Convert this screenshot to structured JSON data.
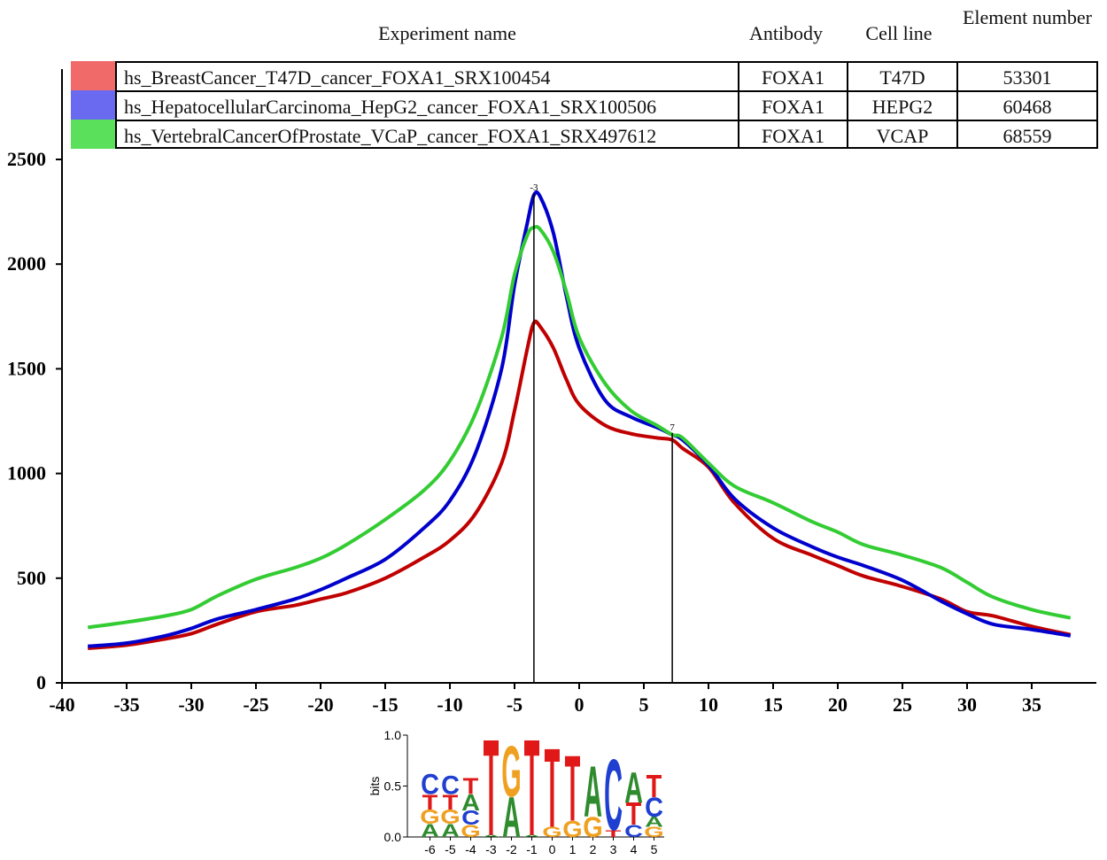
{
  "legend": {
    "headers": {
      "experiment": "Experiment name",
      "antibody": "Antibody",
      "cell_line": "Cell line",
      "element_number": "Element number"
    },
    "rows": [
      {
        "experiment": "hs_BreastCancer_T47D_cancer_FOXA1_SRX100454",
        "antibody": "FOXA1",
        "cell_line": "T47D",
        "element_number": "53301",
        "color": "#f06a6a"
      },
      {
        "experiment": "hs_HepatocellularCarcinoma_HepG2_cancer_FOXA1_SRX100506",
        "antibody": "FOXA1",
        "cell_line": "HEPG2",
        "element_number": "60468",
        "color": "#6a6af0"
      },
      {
        "experiment": "hs_VertebralCancerOfProstate_VCaP_cancer_FOXA1_SRX497612",
        "antibody": "FOXA1",
        "cell_line": "VCAP",
        "element_number": "68559",
        "color": "#5ae05a"
      }
    ]
  },
  "chart_data": {
    "type": "line",
    "title": "",
    "xlabel": "",
    "ylabel": "",
    "xlim": [
      -40,
      40
    ],
    "ylim": [
      0,
      2500
    ],
    "x_ticks": [
      -40,
      -35,
      -30,
      -25,
      -20,
      -15,
      -10,
      -5,
      0,
      5,
      10,
      15,
      20,
      25,
      30,
      35
    ],
    "y_ticks": [
      0,
      500,
      1000,
      1500,
      2000,
      2500
    ],
    "grid": false,
    "legend_placement": "top table",
    "markers": [
      {
        "label": "-3",
        "x": -3.5
      },
      {
        "label": "7",
        "x": 7.2
      }
    ],
    "x": [
      -38,
      -35,
      -32,
      -30,
      -28,
      -25,
      -22,
      -20,
      -18,
      -15,
      -12,
      -10,
      -8,
      -6,
      -5,
      -4,
      -3.5,
      -3,
      -2,
      -1,
      0,
      2,
      4,
      6,
      7.2,
      8,
      10,
      12,
      15,
      18,
      20,
      22,
      25,
      28,
      30,
      32,
      35,
      38
    ],
    "series": [
      {
        "color": "#c00000",
        "values": [
          165,
          180,
          210,
          235,
          280,
          340,
          370,
          400,
          430,
          500,
          600,
          680,
          810,
          1050,
          1300,
          1600,
          1720,
          1700,
          1600,
          1450,
          1330,
          1230,
          1190,
          1170,
          1160,
          1120,
          1030,
          860,
          690,
          610,
          560,
          510,
          460,
          400,
          340,
          320,
          270,
          230
        ]
      },
      {
        "color": "#0000cc",
        "values": [
          175,
          190,
          225,
          260,
          305,
          350,
          400,
          445,
          500,
          590,
          740,
          870,
          1100,
          1500,
          1900,
          2200,
          2330,
          2320,
          2150,
          1850,
          1600,
          1350,
          1270,
          1220,
          1185,
          1160,
          1040,
          880,
          740,
          650,
          600,
          560,
          490,
          390,
          330,
          280,
          255,
          225
        ]
      },
      {
        "color": "#33cc33",
        "values": [
          265,
          290,
          320,
          350,
          415,
          495,
          550,
          595,
          660,
          780,
          920,
          1060,
          1290,
          1650,
          1950,
          2140,
          2175,
          2165,
          2060,
          1870,
          1650,
          1430,
          1300,
          1230,
          1185,
          1170,
          1050,
          940,
          860,
          770,
          720,
          660,
          610,
          550,
          480,
          410,
          350,
          310
        ]
      }
    ]
  },
  "logo": {
    "ylabel": "bits",
    "y_ticks": [
      "0.0",
      "0.5",
      "1.0"
    ],
    "positions": [
      "-6",
      "-5",
      "-4",
      "-3",
      "-2",
      "-1",
      "0",
      "1",
      "2",
      "3",
      "4",
      "5"
    ],
    "colors": {
      "A": "#2e8b2e",
      "C": "#1f3fd0",
      "G": "#f0a020",
      "T": "#e01818"
    },
    "columns": [
      [
        {
          "l": "A",
          "h": 0.13
        },
        {
          "l": "G",
          "h": 0.14
        },
        {
          "l": "T",
          "h": 0.15
        },
        {
          "l": "C",
          "h": 0.2
        }
      ],
      [
        {
          "l": "A",
          "h": 0.13
        },
        {
          "l": "G",
          "h": 0.14
        },
        {
          "l": "T",
          "h": 0.15
        },
        {
          "l": "C",
          "h": 0.18
        }
      ],
      [
        {
          "l": "G",
          "h": 0.12
        },
        {
          "l": "C",
          "h": 0.14
        },
        {
          "l": "A",
          "h": 0.16
        },
        {
          "l": "T",
          "h": 0.16
        }
      ],
      [
        {
          "l": "A",
          "h": 0.02
        },
        {
          "l": "T",
          "h": 0.95
        }
      ],
      [
        {
          "l": "A",
          "h": 0.4
        },
        {
          "l": "G",
          "h": 0.5
        }
      ],
      [
        {
          "l": "A",
          "h": 0.02
        },
        {
          "l": "T",
          "h": 0.95
        }
      ],
      [
        {
          "l": "G",
          "h": 0.1
        },
        {
          "l": "T",
          "h": 0.78
        }
      ],
      [
        {
          "l": "G",
          "h": 0.16
        },
        {
          "l": "T",
          "h": 0.65
        }
      ],
      [
        {
          "l": "G",
          "h": 0.2
        },
        {
          "l": "A",
          "h": 0.5
        }
      ],
      [
        {
          "l": "T",
          "h": 0.07
        },
        {
          "l": "C",
          "h": 0.7
        }
      ],
      [
        {
          "l": "C",
          "h": 0.12
        },
        {
          "l": "T",
          "h": 0.22
        },
        {
          "l": "A",
          "h": 0.3
        }
      ],
      [
        {
          "l": "G",
          "h": 0.1
        },
        {
          "l": "A",
          "h": 0.1
        },
        {
          "l": "C",
          "h": 0.19
        },
        {
          "l": "T",
          "h": 0.22
        }
      ]
    ]
  }
}
